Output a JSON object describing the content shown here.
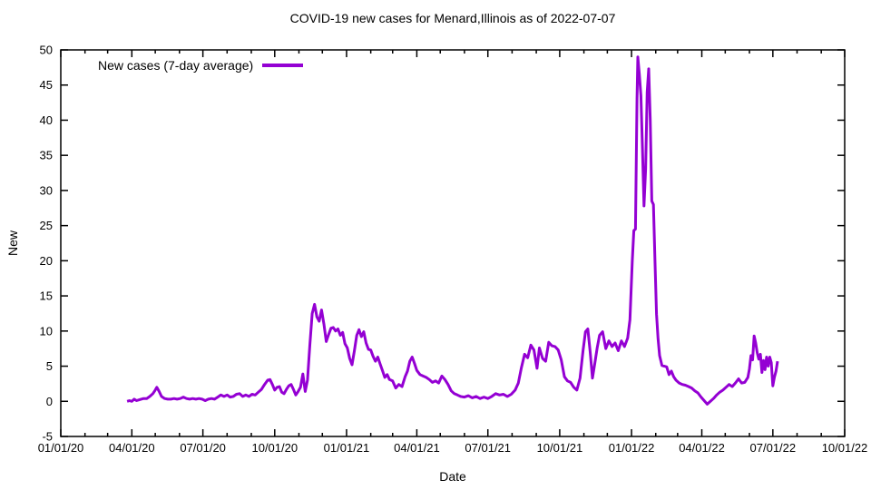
{
  "page": {
    "background": "#ffffff"
  },
  "chart_data": {
    "type": "line",
    "title": "COVID-19 new cases for Menard,Illinois as of 2022-07-07",
    "xlabel": "Date",
    "ylabel": "New",
    "legend_label": "New cases (7-day average)",
    "legend_position": "inside-top-left",
    "grid": false,
    "line_color": "#9400d3",
    "axis_color": "#000000",
    "x_axis": {
      "start": "2020-01-01",
      "end": "2022-10-01",
      "major_tick_labels": [
        "01/01/20",
        "04/01/20",
        "07/01/20",
        "10/01/20",
        "01/01/21",
        "04/01/21",
        "07/01/21",
        "10/01/21",
        "01/01/22",
        "04/01/22",
        "07/01/22",
        "10/01/22"
      ],
      "minor_ticks": "monthly"
    },
    "y_axis": {
      "min": -5,
      "max": 50,
      "tick_step": 5,
      "tick_labels": [
        "-5",
        "0",
        "5",
        "10",
        "15",
        "20",
        "25",
        "30",
        "35",
        "40",
        "45",
        "50"
      ]
    },
    "series": [
      {
        "name": "New cases (7-day average)",
        "color": "#9400d3",
        "points": [
          [
            "2020-03-26",
            0.0
          ],
          [
            "2020-03-29",
            0.1
          ],
          [
            "2020-04-01",
            0.0
          ],
          [
            "2020-04-04",
            0.3
          ],
          [
            "2020-04-07",
            0.1
          ],
          [
            "2020-04-10",
            0.2
          ],
          [
            "2020-04-13",
            0.3
          ],
          [
            "2020-04-16",
            0.4
          ],
          [
            "2020-04-20",
            0.4
          ],
          [
            "2020-04-24",
            0.7
          ],
          [
            "2020-04-28",
            1.1
          ],
          [
            "2020-05-01",
            1.6
          ],
          [
            "2020-05-03",
            2.0
          ],
          [
            "2020-05-06",
            1.4
          ],
          [
            "2020-05-09",
            0.7
          ],
          [
            "2020-05-13",
            0.4
          ],
          [
            "2020-05-17",
            0.3
          ],
          [
            "2020-05-21",
            0.3
          ],
          [
            "2020-05-25",
            0.4
          ],
          [
            "2020-05-29",
            0.3
          ],
          [
            "2020-06-02",
            0.4
          ],
          [
            "2020-06-06",
            0.6
          ],
          [
            "2020-06-10",
            0.4
          ],
          [
            "2020-06-14",
            0.3
          ],
          [
            "2020-06-18",
            0.4
          ],
          [
            "2020-06-22",
            0.3
          ],
          [
            "2020-06-26",
            0.4
          ],
          [
            "2020-06-30",
            0.3
          ],
          [
            "2020-07-04",
            0.1
          ],
          [
            "2020-07-08",
            0.3
          ],
          [
            "2020-07-12",
            0.4
          ],
          [
            "2020-07-16",
            0.3
          ],
          [
            "2020-07-20",
            0.6
          ],
          [
            "2020-07-24",
            0.9
          ],
          [
            "2020-07-28",
            0.7
          ],
          [
            "2020-08-01",
            0.9
          ],
          [
            "2020-08-05",
            0.6
          ],
          [
            "2020-08-09",
            0.7
          ],
          [
            "2020-08-13",
            1.0
          ],
          [
            "2020-08-17",
            1.1
          ],
          [
            "2020-08-21",
            0.7
          ],
          [
            "2020-08-25",
            0.9
          ],
          [
            "2020-08-29",
            0.7
          ],
          [
            "2020-09-02",
            1.0
          ],
          [
            "2020-09-06",
            0.9
          ],
          [
            "2020-09-10",
            1.3
          ],
          [
            "2020-09-14",
            1.7
          ],
          [
            "2020-09-18",
            2.4
          ],
          [
            "2020-09-22",
            3.0
          ],
          [
            "2020-09-25",
            3.1
          ],
          [
            "2020-09-28",
            2.4
          ],
          [
            "2020-10-01",
            1.6
          ],
          [
            "2020-10-04",
            2.0
          ],
          [
            "2020-10-07",
            2.1
          ],
          [
            "2020-10-10",
            1.3
          ],
          [
            "2020-10-13",
            1.1
          ],
          [
            "2020-10-16",
            1.7
          ],
          [
            "2020-10-19",
            2.2
          ],
          [
            "2020-10-22",
            2.4
          ],
          [
            "2020-10-25",
            1.7
          ],
          [
            "2020-10-28",
            0.9
          ],
          [
            "2020-10-31",
            1.4
          ],
          [
            "2020-11-03",
            2.0
          ],
          [
            "2020-11-06",
            3.9
          ],
          [
            "2020-11-09",
            1.4
          ],
          [
            "2020-11-12",
            3.0
          ],
          [
            "2020-11-15",
            8.0
          ],
          [
            "2020-11-18",
            12.5
          ],
          [
            "2020-11-21",
            13.8
          ],
          [
            "2020-11-24",
            12.0
          ],
          [
            "2020-11-27",
            11.4
          ],
          [
            "2020-11-30",
            13.0
          ],
          [
            "2020-12-03",
            11.0
          ],
          [
            "2020-12-06",
            8.5
          ],
          [
            "2020-12-09",
            9.5
          ],
          [
            "2020-12-12",
            10.4
          ],
          [
            "2020-12-15",
            10.5
          ],
          [
            "2020-12-18",
            10.0
          ],
          [
            "2020-12-21",
            10.3
          ],
          [
            "2020-12-24",
            9.4
          ],
          [
            "2020-12-27",
            9.8
          ],
          [
            "2020-12-30",
            8.2
          ],
          [
            "2021-01-02",
            7.6
          ],
          [
            "2021-01-05",
            6.1
          ],
          [
            "2021-01-08",
            5.2
          ],
          [
            "2021-01-11",
            7.2
          ],
          [
            "2021-01-14",
            9.4
          ],
          [
            "2021-01-17",
            10.2
          ],
          [
            "2021-01-20",
            9.2
          ],
          [
            "2021-01-23",
            9.9
          ],
          [
            "2021-01-26",
            8.3
          ],
          [
            "2021-01-29",
            7.4
          ],
          [
            "2021-02-01",
            7.3
          ],
          [
            "2021-02-04",
            6.4
          ],
          [
            "2021-02-07",
            5.7
          ],
          [
            "2021-02-10",
            6.3
          ],
          [
            "2021-02-13",
            5.3
          ],
          [
            "2021-02-16",
            4.4
          ],
          [
            "2021-02-19",
            3.4
          ],
          [
            "2021-02-22",
            3.8
          ],
          [
            "2021-02-25",
            3.1
          ],
          [
            "2021-03-01",
            2.9
          ],
          [
            "2021-03-05",
            1.9
          ],
          [
            "2021-03-09",
            2.4
          ],
          [
            "2021-03-13",
            2.1
          ],
          [
            "2021-03-17",
            3.5
          ],
          [
            "2021-03-20",
            4.3
          ],
          [
            "2021-03-23",
            5.7
          ],
          [
            "2021-03-26",
            6.3
          ],
          [
            "2021-03-29",
            5.4
          ],
          [
            "2021-04-01",
            4.4
          ],
          [
            "2021-04-05",
            3.8
          ],
          [
            "2021-04-09",
            3.6
          ],
          [
            "2021-04-13",
            3.4
          ],
          [
            "2021-04-17",
            3.1
          ],
          [
            "2021-04-21",
            2.7
          ],
          [
            "2021-04-25",
            2.9
          ],
          [
            "2021-04-29",
            2.6
          ],
          [
            "2021-05-03",
            3.6
          ],
          [
            "2021-05-07",
            3.1
          ],
          [
            "2021-05-11",
            2.4
          ],
          [
            "2021-05-15",
            1.5
          ],
          [
            "2021-05-19",
            1.1
          ],
          [
            "2021-05-23",
            0.9
          ],
          [
            "2021-05-27",
            0.7
          ],
          [
            "2021-06-01",
            0.6
          ],
          [
            "2021-06-06",
            0.8
          ],
          [
            "2021-06-11",
            0.5
          ],
          [
            "2021-06-16",
            0.7
          ],
          [
            "2021-06-21",
            0.4
          ],
          [
            "2021-06-26",
            0.6
          ],
          [
            "2021-07-01",
            0.4
          ],
          [
            "2021-07-06",
            0.7
          ],
          [
            "2021-07-11",
            1.1
          ],
          [
            "2021-07-16",
            0.9
          ],
          [
            "2021-07-21",
            1.0
          ],
          [
            "2021-07-26",
            0.7
          ],
          [
            "2021-07-31",
            1.0
          ],
          [
            "2021-08-05",
            1.6
          ],
          [
            "2021-08-09",
            2.6
          ],
          [
            "2021-08-13",
            4.8
          ],
          [
            "2021-08-17",
            6.7
          ],
          [
            "2021-08-21",
            6.2
          ],
          [
            "2021-08-25",
            8.0
          ],
          [
            "2021-08-29",
            7.3
          ],
          [
            "2021-09-02",
            4.7
          ],
          [
            "2021-09-05",
            7.6
          ],
          [
            "2021-09-09",
            6.1
          ],
          [
            "2021-09-13",
            5.7
          ],
          [
            "2021-09-17",
            8.4
          ],
          [
            "2021-09-21",
            7.9
          ],
          [
            "2021-09-25",
            7.8
          ],
          [
            "2021-09-29",
            7.3
          ],
          [
            "2021-10-03",
            5.9
          ],
          [
            "2021-10-07",
            3.5
          ],
          [
            "2021-10-11",
            2.9
          ],
          [
            "2021-10-15",
            2.7
          ],
          [
            "2021-10-19",
            2.0
          ],
          [
            "2021-10-23",
            1.6
          ],
          [
            "2021-10-27",
            3.3
          ],
          [
            "2021-10-31",
            7.3
          ],
          [
            "2021-11-03",
            9.9
          ],
          [
            "2021-11-06",
            10.3
          ],
          [
            "2021-11-09",
            7.0
          ],
          [
            "2021-11-12",
            3.3
          ],
          [
            "2021-11-15",
            5.4
          ],
          [
            "2021-11-18",
            7.6
          ],
          [
            "2021-11-21",
            9.4
          ],
          [
            "2021-11-25",
            9.9
          ],
          [
            "2021-11-29",
            7.5
          ],
          [
            "2021-12-03",
            8.6
          ],
          [
            "2021-12-07",
            7.8
          ],
          [
            "2021-12-11",
            8.3
          ],
          [
            "2021-12-15",
            7.2
          ],
          [
            "2021-12-19",
            8.6
          ],
          [
            "2021-12-23",
            7.8
          ],
          [
            "2021-12-27",
            9.0
          ],
          [
            "2021-12-30",
            11.6
          ],
          [
            "2022-01-02",
            20.0
          ],
          [
            "2022-01-04",
            24.3
          ],
          [
            "2022-01-06",
            24.5
          ],
          [
            "2022-01-08",
            43.0
          ],
          [
            "2022-01-09",
            49.0
          ],
          [
            "2022-01-11",
            46.5
          ],
          [
            "2022-01-13",
            43.5
          ],
          [
            "2022-01-15",
            36.0
          ],
          [
            "2022-01-17",
            27.8
          ],
          [
            "2022-01-19",
            33.0
          ],
          [
            "2022-01-21",
            44.0
          ],
          [
            "2022-01-23",
            47.3
          ],
          [
            "2022-01-25",
            40.0
          ],
          [
            "2022-01-27",
            28.5
          ],
          [
            "2022-01-29",
            28.0
          ],
          [
            "2022-01-31",
            20.0
          ],
          [
            "2022-02-02",
            12.4
          ],
          [
            "2022-02-04",
            8.9
          ],
          [
            "2022-02-06",
            6.5
          ],
          [
            "2022-02-09",
            5.1
          ],
          [
            "2022-02-12",
            5.0
          ],
          [
            "2022-02-15",
            4.9
          ],
          [
            "2022-02-18",
            3.8
          ],
          [
            "2022-02-21",
            4.3
          ],
          [
            "2022-02-24",
            3.5
          ],
          [
            "2022-02-27",
            3.0
          ],
          [
            "2022-03-03",
            2.6
          ],
          [
            "2022-03-07",
            2.4
          ],
          [
            "2022-03-11",
            2.3
          ],
          [
            "2022-03-15",
            2.1
          ],
          [
            "2022-03-19",
            1.9
          ],
          [
            "2022-03-23",
            1.5
          ],
          [
            "2022-03-27",
            1.2
          ],
          [
            "2022-03-31",
            0.6
          ],
          [
            "2022-04-04",
            0.1
          ],
          [
            "2022-04-08",
            -0.4
          ],
          [
            "2022-04-12",
            0.0
          ],
          [
            "2022-04-16",
            0.4
          ],
          [
            "2022-04-20",
            0.9
          ],
          [
            "2022-04-24",
            1.3
          ],
          [
            "2022-04-28",
            1.6
          ],
          [
            "2022-05-02",
            2.0
          ],
          [
            "2022-05-06",
            2.4
          ],
          [
            "2022-05-10",
            2.1
          ],
          [
            "2022-05-14",
            2.6
          ],
          [
            "2022-05-18",
            3.2
          ],
          [
            "2022-05-22",
            2.6
          ],
          [
            "2022-05-26",
            2.7
          ],
          [
            "2022-05-30",
            3.4
          ],
          [
            "2022-06-01",
            4.6
          ],
          [
            "2022-06-03",
            6.5
          ],
          [
            "2022-06-05",
            5.9
          ],
          [
            "2022-06-07",
            9.3
          ],
          [
            "2022-06-09",
            8.3
          ],
          [
            "2022-06-11",
            6.9
          ],
          [
            "2022-06-13",
            6.0
          ],
          [
            "2022-06-15",
            6.7
          ],
          [
            "2022-06-17",
            4.1
          ],
          [
            "2022-06-19",
            5.8
          ],
          [
            "2022-06-21",
            4.5
          ],
          [
            "2022-06-23",
            6.3
          ],
          [
            "2022-06-25",
            5.0
          ],
          [
            "2022-06-27",
            6.3
          ],
          [
            "2022-06-29",
            5.5
          ],
          [
            "2022-07-01",
            2.2
          ],
          [
            "2022-07-03",
            3.4
          ],
          [
            "2022-07-05",
            4.3
          ],
          [
            "2022-07-07",
            5.7
          ]
        ]
      }
    ]
  }
}
